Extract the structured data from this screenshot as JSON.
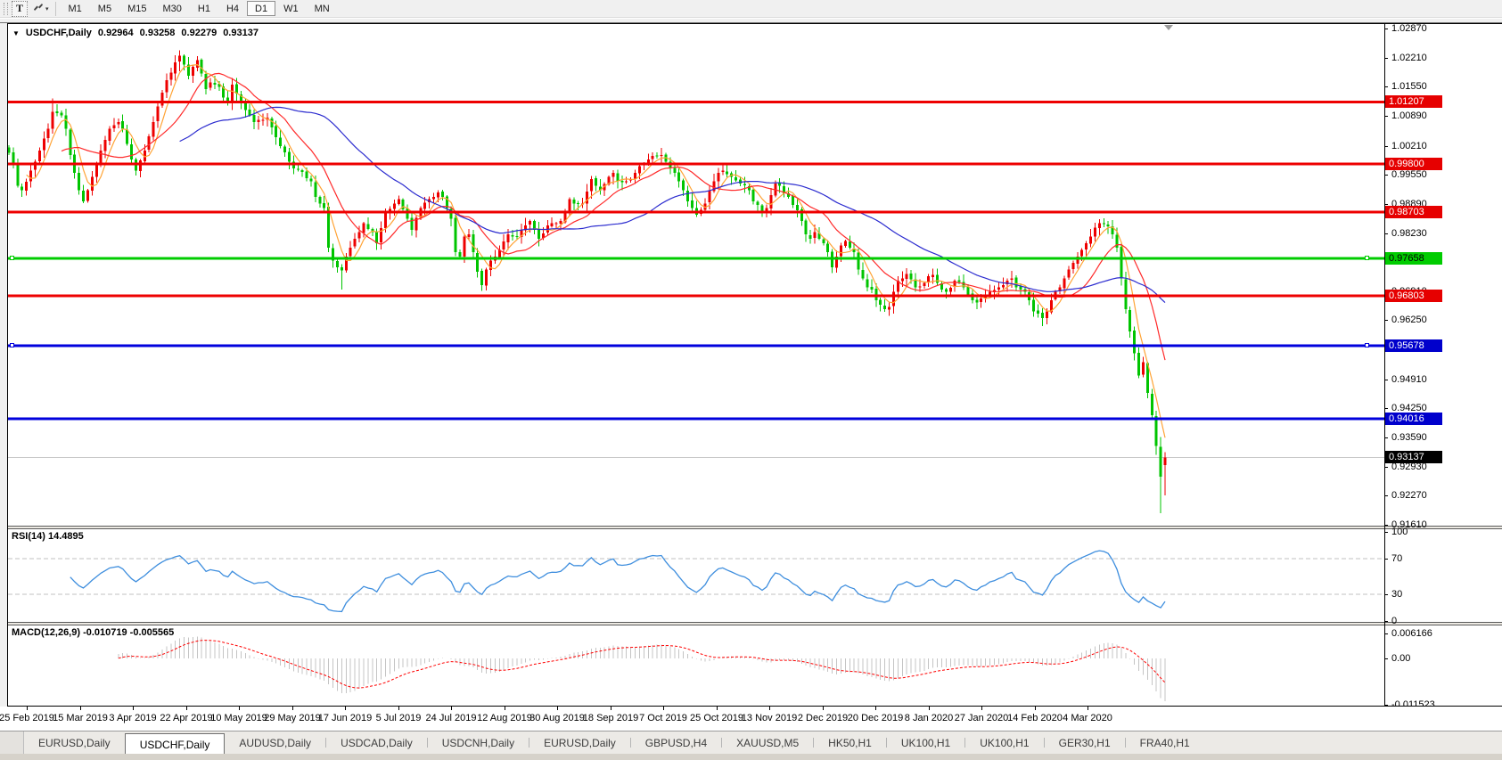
{
  "toolbar": {
    "text_tool_label": "T",
    "cursor_tool_caret": "▾",
    "timeframes": [
      {
        "label": "M1",
        "active": false
      },
      {
        "label": "M5",
        "active": false
      },
      {
        "label": "M15",
        "active": false
      },
      {
        "label": "M30",
        "active": false
      },
      {
        "label": "H1",
        "active": false
      },
      {
        "label": "H4",
        "active": false
      },
      {
        "label": "D1",
        "active": true
      },
      {
        "label": "W1",
        "active": false
      },
      {
        "label": "MN",
        "active": false
      }
    ]
  },
  "chart_title": {
    "menu_arrow": "▼",
    "symbol_period": "USDCHF,Daily",
    "open": "0.92964",
    "high": "0.93258",
    "low": "0.92279",
    "close": "0.93137"
  },
  "pane_labels": {
    "rsi": "RSI(14) 14.4895",
    "macd": "MACD(12,26,9) -0.010719 -0.005565"
  },
  "axes": {
    "price_ticks": [
      "1.02870",
      "1.02210",
      "1.01550",
      "1.00890",
      "1.00210",
      "0.99550",
      "0.98890",
      "0.98230",
      "0.97570",
      "0.96910",
      "0.96250",
      "0.95590",
      "0.94910",
      "0.94250",
      "0.93590",
      "0.92930",
      "0.92270",
      "0.91610"
    ],
    "rsi_ticks": [
      "100",
      "70",
      "30",
      "0"
    ],
    "macd_ticks": [
      "0.006166",
      "0.00",
      "-0.011523"
    ],
    "dates": [
      "25 Feb 2019",
      "15 Mar 2019",
      "3 Apr 2019",
      "22 Apr 2019",
      "10 May 2019",
      "29 May 2019",
      "17 Jun 2019",
      "5 Jul 2019",
      "24 Jul 2019",
      "12 Aug 2019",
      "30 Aug 2019",
      "18 Sep 2019",
      "7 Oct 2019",
      "25 Oct 2019",
      "13 Nov 2019",
      "2 Dec 2019",
      "20 Dec 2019",
      "8 Jan 2020",
      "27 Jan 2020",
      "14 Feb 2020",
      "4 Mar 2020"
    ]
  },
  "tabs": [
    {
      "label": "EURUSD,Daily",
      "active": false
    },
    {
      "label": "USDCHF,Daily",
      "active": true
    },
    {
      "label": "AUDUSD,Daily",
      "active": false
    },
    {
      "label": "USDCAD,Daily",
      "active": false
    },
    {
      "label": "USDCNH,Daily",
      "active": false
    },
    {
      "label": "EURUSD,Daily",
      "active": false
    },
    {
      "label": "GBPUSD,H4",
      "active": false
    },
    {
      "label": "XAUUSD,M5",
      "active": false
    },
    {
      "label": "HK50,H1",
      "active": false
    },
    {
      "label": "UK100,H1",
      "active": false
    },
    {
      "label": "UK100,H1",
      "active": false
    },
    {
      "label": "GER30,H1",
      "active": false
    },
    {
      "label": "FRA40,H1",
      "active": false
    }
  ],
  "chart_data": {
    "type": "candlestick",
    "symbol": "USDCHF",
    "timeframe": "Daily",
    "price_range": [
      0.9161,
      1.0287
    ],
    "bar_count": 265,
    "last_candle": {
      "open": 0.92964,
      "high": 0.93258,
      "low": 0.92279,
      "close": 0.93137
    },
    "close_path": [
      [
        0,
        1.0005
      ],
      [
        1,
        0.998
      ],
      [
        2,
        0.993
      ],
      [
        3,
        0.992
      ],
      [
        5,
        0.9965
      ],
      [
        7,
        1.001
      ],
      [
        9,
        1.006
      ],
      [
        10,
        1.0098
      ],
      [
        12,
        1.009
      ],
      [
        13,
        1.006
      ],
      [
        14,
        1.0
      ],
      [
        15,
        0.996
      ],
      [
        16,
        0.992
      ],
      [
        17,
        0.9895
      ],
      [
        18,
        0.992
      ],
      [
        19,
        0.995
      ],
      [
        21,
        1.001
      ],
      [
        23,
        1.006
      ],
      [
        25,
        1.0075
      ],
      [
        26,
        1.006
      ],
      [
        28,
        0.999
      ],
      [
        29,
        0.9965
      ],
      [
        31,
        1.001
      ],
      [
        33,
        1.0075
      ],
      [
        34,
        1.011
      ],
      [
        36,
        1.017
      ],
      [
        38,
        1.021
      ],
      [
        39,
        1.0225
      ],
      [
        40,
        1.0205
      ],
      [
        41,
        1.018
      ],
      [
        42,
        1.02
      ],
      [
        43,
        1.0215
      ],
      [
        44,
        1.0185
      ],
      [
        45,
        1.015
      ],
      [
        46,
        1.0165
      ],
      [
        48,
        1.0155
      ],
      [
        49,
        1.013
      ],
      [
        50,
        1.012
      ],
      [
        51,
        1.016
      ],
      [
        53,
        1.012
      ],
      [
        55,
        1.009
      ],
      [
        56,
        1.0075
      ],
      [
        58,
        1.008
      ],
      [
        59,
        1.0085
      ],
      [
        61,
        1.004
      ],
      [
        62,
        1.002
      ],
      [
        64,
        0.9985
      ],
      [
        65,
        0.997
      ],
      [
        67,
        0.9962
      ],
      [
        69,
        0.994
      ],
      [
        70,
        0.9905
      ],
      [
        71,
        0.989
      ],
      [
        72,
        0.988
      ],
      [
        73,
        0.979
      ],
      [
        74,
        0.976
      ],
      [
        75,
        0.9745
      ],
      [
        76,
        0.9738
      ],
      [
        77,
        0.977
      ],
      [
        78,
        0.979
      ],
      [
        79,
        0.981
      ],
      [
        81,
        0.9845
      ],
      [
        83,
        0.9825
      ],
      [
        84,
        0.98
      ],
      [
        86,
        0.987
      ],
      [
        88,
        0.989
      ],
      [
        89,
        0.99
      ],
      [
        91,
        0.9855
      ],
      [
        92,
        0.983
      ],
      [
        94,
        0.988
      ],
      [
        96,
        0.99
      ],
      [
        98,
        0.9915
      ],
      [
        99,
        0.9905
      ],
      [
        100,
        0.988
      ],
      [
        101,
        0.9855
      ],
      [
        102,
        0.978
      ],
      [
        103,
        0.977
      ],
      [
        104,
        0.9815
      ],
      [
        105,
        0.982
      ],
      [
        106,
        0.978
      ],
      [
        107,
        0.9735
      ],
      [
        108,
        0.9705
      ],
      [
        109,
        0.974
      ],
      [
        110,
        0.976
      ],
      [
        112,
        0.9785
      ],
      [
        114,
        0.982
      ],
      [
        116,
        0.9815
      ],
      [
        118,
        0.984
      ],
      [
        119,
        0.985
      ],
      [
        120,
        0.983
      ],
      [
        121,
        0.981
      ],
      [
        123,
        0.984
      ],
      [
        125,
        0.9845
      ],
      [
        126,
        0.985
      ],
      [
        128,
        0.99
      ],
      [
        129,
        0.989
      ],
      [
        131,
        0.989
      ],
      [
        133,
        0.9945
      ],
      [
        134,
        0.993
      ],
      [
        135,
        0.992
      ],
      [
        137,
        0.995
      ],
      [
        138,
        0.996
      ],
      [
        139,
        0.994
      ],
      [
        141,
        0.994
      ],
      [
        143,
        0.996
      ],
      [
        144,
        0.9975
      ],
      [
        146,
        0.999
      ],
      [
        147,
        0.9998
      ],
      [
        149,
        1.0
      ],
      [
        150,
        0.9985
      ],
      [
        152,
        0.996
      ],
      [
        154,
        0.992
      ],
      [
        155,
        0.9895
      ],
      [
        156,
        0.988
      ],
      [
        157,
        0.9865
      ],
      [
        159,
        0.989
      ],
      [
        160,
        0.992
      ],
      [
        162,
        0.996
      ],
      [
        163,
        0.9965
      ],
      [
        165,
        0.995
      ],
      [
        167,
        0.9935
      ],
      [
        169,
        0.992
      ],
      [
        170,
        0.9895
      ],
      [
        172,
        0.987
      ],
      [
        173,
        0.988
      ],
      [
        175,
        0.9935
      ],
      [
        176,
        0.993
      ],
      [
        178,
        0.9905
      ],
      [
        180,
        0.9875
      ],
      [
        181,
        0.985
      ],
      [
        182,
        0.982
      ],
      [
        183,
        0.981
      ],
      [
        184,
        0.9825
      ],
      [
        186,
        0.98
      ],
      [
        187,
        0.978
      ],
      [
        188,
        0.9745
      ],
      [
        189,
        0.977
      ],
      [
        190,
        0.9795
      ],
      [
        191,
        0.9805
      ],
      [
        192,
        0.979
      ],
      [
        193,
        0.978
      ],
      [
        194,
        0.974
      ],
      [
        195,
        0.972
      ],
      [
        196,
        0.97
      ],
      [
        197,
        0.9695
      ],
      [
        198,
        0.967
      ],
      [
        199,
        0.966
      ],
      [
        200,
        0.965
      ],
      [
        201,
        0.9655
      ],
      [
        202,
        0.969
      ],
      [
        203,
        0.9715
      ],
      [
        204,
        0.972
      ],
      [
        205,
        0.973
      ],
      [
        206,
        0.9718
      ],
      [
        207,
        0.97
      ],
      [
        208,
        0.9702
      ],
      [
        210,
        0.9725
      ],
      [
        211,
        0.9728
      ],
      [
        212,
        0.971
      ],
      [
        213,
        0.9695
      ],
      [
        214,
        0.969
      ],
      [
        216,
        0.9715
      ],
      [
        217,
        0.9712
      ],
      [
        218,
        0.97
      ],
      [
        220,
        0.967
      ],
      [
        221,
        0.9665
      ],
      [
        222,
        0.9675
      ],
      [
        223,
        0.968
      ],
      [
        224,
        0.969
      ],
      [
        226,
        0.97
      ],
      [
        228,
        0.9715
      ],
      [
        229,
        0.972
      ],
      [
        230,
        0.97
      ],
      [
        231,
        0.9695
      ],
      [
        232,
        0.969
      ],
      [
        233,
        0.967
      ],
      [
        234,
        0.9645
      ],
      [
        235,
        0.964
      ],
      [
        236,
        0.963
      ],
      [
        237,
        0.9645
      ],
      [
        238,
        0.967
      ],
      [
        239,
        0.969
      ],
      [
        240,
        0.97
      ],
      [
        241,
        0.972
      ],
      [
        242,
        0.974
      ],
      [
        243,
        0.9755
      ],
      [
        244,
        0.977
      ],
      [
        245,
        0.9785
      ],
      [
        246,
        0.98
      ],
      [
        247,
        0.9815
      ],
      [
        248,
        0.9835
      ],
      [
        249,
        0.9845
      ],
      [
        250,
        0.9843
      ],
      [
        251,
        0.9838
      ],
      [
        252,
        0.982
      ],
      [
        253,
        0.979
      ],
      [
        254,
        0.972
      ],
      [
        255,
        0.965
      ],
      [
        256,
        0.96
      ],
      [
        257,
        0.955
      ],
      [
        258,
        0.95
      ],
      [
        259,
        0.953
      ],
      [
        260,
        0.946
      ],
      [
        261,
        0.941
      ],
      [
        262,
        0.934
      ],
      [
        263,
        0.927
      ],
      [
        264,
        0.93137
      ]
    ],
    "candle_overrides": {
      "10": [
        1.006,
        1.0128,
        1.0048,
        1.0098
      ],
      "39": [
        1.0212,
        1.0237,
        1.019,
        1.0225
      ],
      "76": [
        0.9745,
        0.9752,
        0.9695,
        0.9738
      ],
      "108": [
        0.9737,
        0.9742,
        0.9692,
        0.9705
      ],
      "200": [
        0.9658,
        0.9672,
        0.9644,
        0.965
      ],
      "236": [
        0.9642,
        0.9652,
        0.9612,
        0.963
      ],
      "250": [
        0.9845,
        0.9856,
        0.9836,
        0.9843
      ],
      "262": [
        0.9408,
        0.942,
        0.932,
        0.934
      ],
      "263": [
        0.9338,
        0.936,
        0.9187,
        0.927
      ],
      "264": [
        0.92964,
        0.93258,
        0.92279,
        0.93137
      ]
    },
    "moving_averages": [
      {
        "period": 5,
        "color": "#FFA335"
      },
      {
        "period": 13,
        "color": "#FF2A2A"
      },
      {
        "period": 40,
        "color": "#2B2BCF"
      }
    ],
    "levels": [
      {
        "price": 1.01207,
        "label": "1.01207",
        "line_color": "#EE0000",
        "line_width": 3,
        "tag_bg": "#E60000",
        "tag_fg": "#FFFFFF",
        "handles": false,
        "current": false
      },
      {
        "price": 0.998,
        "label": "0.99800",
        "line_color": "#EE0000",
        "line_width": 3,
        "tag_bg": "#E60000",
        "tag_fg": "#FFFFFF",
        "handles": false,
        "current": false
      },
      {
        "price": 0.98703,
        "label": "0.98703",
        "line_color": "#EE0000",
        "line_width": 3,
        "tag_bg": "#E60000",
        "tag_fg": "#FFFFFF",
        "handles": false,
        "current": false
      },
      {
        "price": 0.97658,
        "label": "0.97658",
        "line_color": "#00CC00",
        "line_width": 3,
        "tag_bg": "#00CC00",
        "tag_fg": "#000000",
        "handles": true,
        "current": false
      },
      {
        "price": 0.96803,
        "label": "0.96803",
        "line_color": "#EE0000",
        "line_width": 3,
        "tag_bg": "#E60000",
        "tag_fg": "#FFFFFF",
        "handles": false,
        "current": false
      },
      {
        "price": 0.95678,
        "label": "0.95678",
        "line_color": "#0000DD",
        "line_width": 3,
        "tag_bg": "#0000CC",
        "tag_fg": "#FFFFFF",
        "handles": true,
        "current": false
      },
      {
        "price": 0.94016,
        "label": "0.94016",
        "line_color": "#0000DD",
        "line_width": 3,
        "tag_bg": "#0000CC",
        "tag_fg": "#FFFFFF",
        "handles": false,
        "current": false
      },
      {
        "price": 0.93137,
        "label": "0.93137",
        "line_color": "#C8C8C8",
        "line_width": 1,
        "tag_bg": "#000000",
        "tag_fg": "#FFFFFF",
        "handles": false,
        "current": true
      }
    ],
    "indicators": {
      "rsi": {
        "period": 14,
        "last_value": 14.4895,
        "levels": [
          70,
          30
        ],
        "range": [
          0,
          100
        ]
      },
      "macd": {
        "fast": 12,
        "slow": 26,
        "signal": 9,
        "last_main": -0.010719,
        "last_signal": -0.005565,
        "scale_max": 0.006166,
        "scale_min": -0.011523
      }
    },
    "colors": {
      "candle_up": "#EE0000",
      "candle_down": "#00C400",
      "rsi_line": "#3E8EDE",
      "rsi_level_line": "#C0C0C0",
      "macd_histogram": "#C4C4C4",
      "macd_signal": "#FF0000",
      "background": "#FFFFFF",
      "axis_text": "#000000"
    }
  }
}
